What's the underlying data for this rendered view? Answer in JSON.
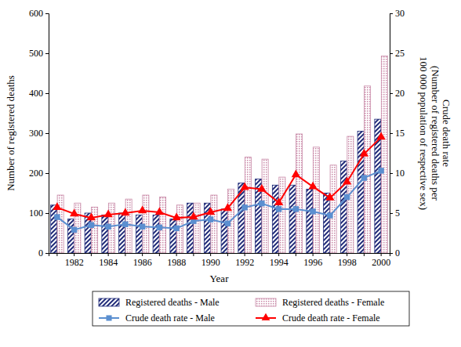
{
  "chart_data": {
    "type": "bar",
    "xlabel": "Year",
    "ylabel": "Number of registered deaths",
    "y2label": [
      "Crude death rate",
      "(Number of registered deaths per",
      "100 000 population of respective sex)"
    ],
    "categories": [
      null,
      "1982",
      null,
      "1984",
      null,
      "1986",
      null,
      "1988",
      null,
      "1990",
      null,
      "1992",
      null,
      "1994",
      null,
      "1996",
      null,
      "1998",
      null,
      "2000"
    ],
    "ylim": [
      0,
      600
    ],
    "yticks": [
      0,
      100,
      200,
      300,
      400,
      500,
      600
    ],
    "y2lim": [
      0,
      30
    ],
    "y2ticks": [
      0,
      5,
      10,
      15,
      20,
      25,
      30
    ],
    "legend": "bottom",
    "series": [
      {
        "name": "Registered deaths - Male",
        "type": "bar",
        "color": "#1f2a78",
        "values": [
          120,
          85,
          100,
          95,
          100,
          95,
          95,
          85,
          125,
          125,
          110,
          175,
          185,
          170,
          170,
          160,
          150,
          230,
          305,
          335
        ]
      },
      {
        "name": "Registered deaths - Female",
        "type": "bar",
        "color": "#c98aa8",
        "values": [
          145,
          125,
          115,
          125,
          135,
          145,
          140,
          120,
          125,
          145,
          160,
          240,
          235,
          190,
          298,
          265,
          220,
          292,
          418,
          493
        ]
      },
      {
        "name": "Crude death rate - Male",
        "type": "line",
        "axis": "y2",
        "color": "#5b8fd0",
        "marker": "square",
        "values": [
          4.5,
          2.9,
          3.5,
          3.3,
          3.6,
          3.3,
          3.2,
          3.1,
          4.0,
          4.2,
          3.7,
          5.7,
          6.2,
          5.5,
          5.5,
          5.2,
          4.7,
          7.0,
          9.4,
          10.3
        ]
      },
      {
        "name": "Crude death rate - Female",
        "type": "line",
        "axis": "y2",
        "color": "#ff0000",
        "marker": "triangle",
        "values": [
          5.7,
          4.9,
          4.4,
          4.8,
          5.0,
          5.3,
          5.1,
          4.4,
          4.5,
          5.1,
          5.6,
          8.2,
          8.0,
          6.3,
          9.8,
          8.3,
          6.9,
          8.9,
          12.4,
          14.5
        ]
      }
    ]
  }
}
